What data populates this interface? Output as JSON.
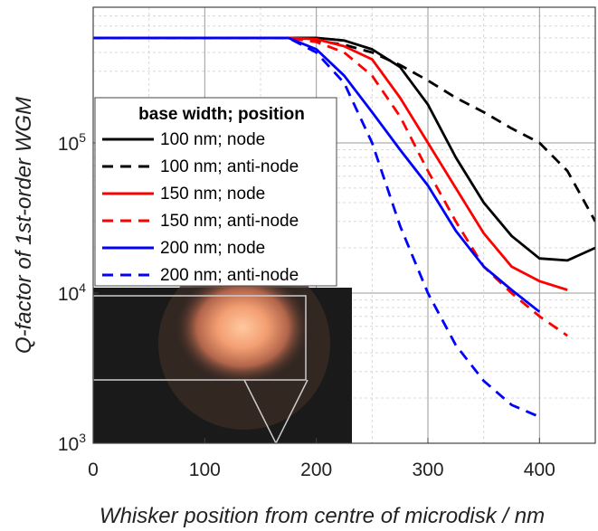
{
  "chart_data": {
    "type": "line",
    "xlabel": "Whisker position from centre of microdisk / nm",
    "ylabel": "Q-factor of 1st-order WGM",
    "xlim": [
      0,
      450
    ],
    "ylim": [
      1000,
      800000
    ],
    "yscale": "log",
    "x_ticks": [
      "0",
      "100",
      "200",
      "300",
      "400"
    ],
    "x_tick_values": [
      0,
      100,
      200,
      300,
      400
    ],
    "y_ticks": [
      {
        "base": "10",
        "exp": "3",
        "value": 1000
      },
      {
        "base": "10",
        "exp": "4",
        "value": 10000
      },
      {
        "base": "10",
        "exp": "5",
        "value": 100000
      }
    ],
    "grid": true,
    "legend": {
      "title": "base width; position",
      "placement": "upper-left"
    },
    "series": [
      {
        "name": "100 nm; node",
        "color": "#000000",
        "dash": "solid",
        "x": [
          0,
          175,
          200,
          225,
          250,
          275,
          300,
          325,
          350,
          375,
          400,
          425,
          450
        ],
        "y": [
          500000,
          500000,
          500000,
          480000,
          420000,
          320000,
          180000,
          80000,
          40000,
          24000,
          17000,
          16500,
          20000
        ]
      },
      {
        "name": "100 nm; anti-node",
        "color": "#000000",
        "dash": "dashed",
        "x": [
          0,
          175,
          200,
          225,
          250,
          275,
          300,
          325,
          350,
          375,
          400,
          425,
          450
        ],
        "y": [
          500000,
          500000,
          480000,
          450000,
          400000,
          330000,
          260000,
          200000,
          160000,
          125000,
          100000,
          65000,
          30000
        ]
      },
      {
        "name": "150 nm; node",
        "color": "#ff0000",
        "dash": "solid",
        "x": [
          0,
          175,
          200,
          225,
          250,
          275,
          300,
          325,
          350,
          375,
          400,
          425
        ],
        "y": [
          500000,
          500000,
          490000,
          440000,
          360000,
          200000,
          100000,
          50000,
          25000,
          15000,
          12000,
          10500
        ]
      },
      {
        "name": "150 nm; anti-node",
        "color": "#ff0000",
        "dash": "dashed",
        "x": [
          0,
          175,
          200,
          225,
          250,
          275,
          300,
          325,
          350,
          375,
          400,
          425
        ],
        "y": [
          500000,
          500000,
          470000,
          400000,
          280000,
          150000,
          65000,
          30000,
          15000,
          10000,
          7000,
          5200
        ]
      },
      {
        "name": "200 nm; node",
        "color": "#0000ff",
        "dash": "solid",
        "x": [
          0,
          175,
          200,
          225,
          250,
          275,
          300,
          325,
          350,
          375,
          400
        ],
        "y": [
          500000,
          500000,
          420000,
          280000,
          160000,
          90000,
          52000,
          26000,
          15000,
          10500,
          7500
        ]
      },
      {
        "name": "200 nm; anti-node",
        "color": "#0000ff",
        "dash": "dashed",
        "x": [
          0,
          175,
          200,
          225,
          250,
          275,
          300,
          325,
          350,
          375,
          400
        ],
        "y": [
          500000,
          500000,
          400000,
          250000,
          100000,
          28000,
          10000,
          4500,
          2600,
          1800,
          1500
        ]
      }
    ]
  }
}
